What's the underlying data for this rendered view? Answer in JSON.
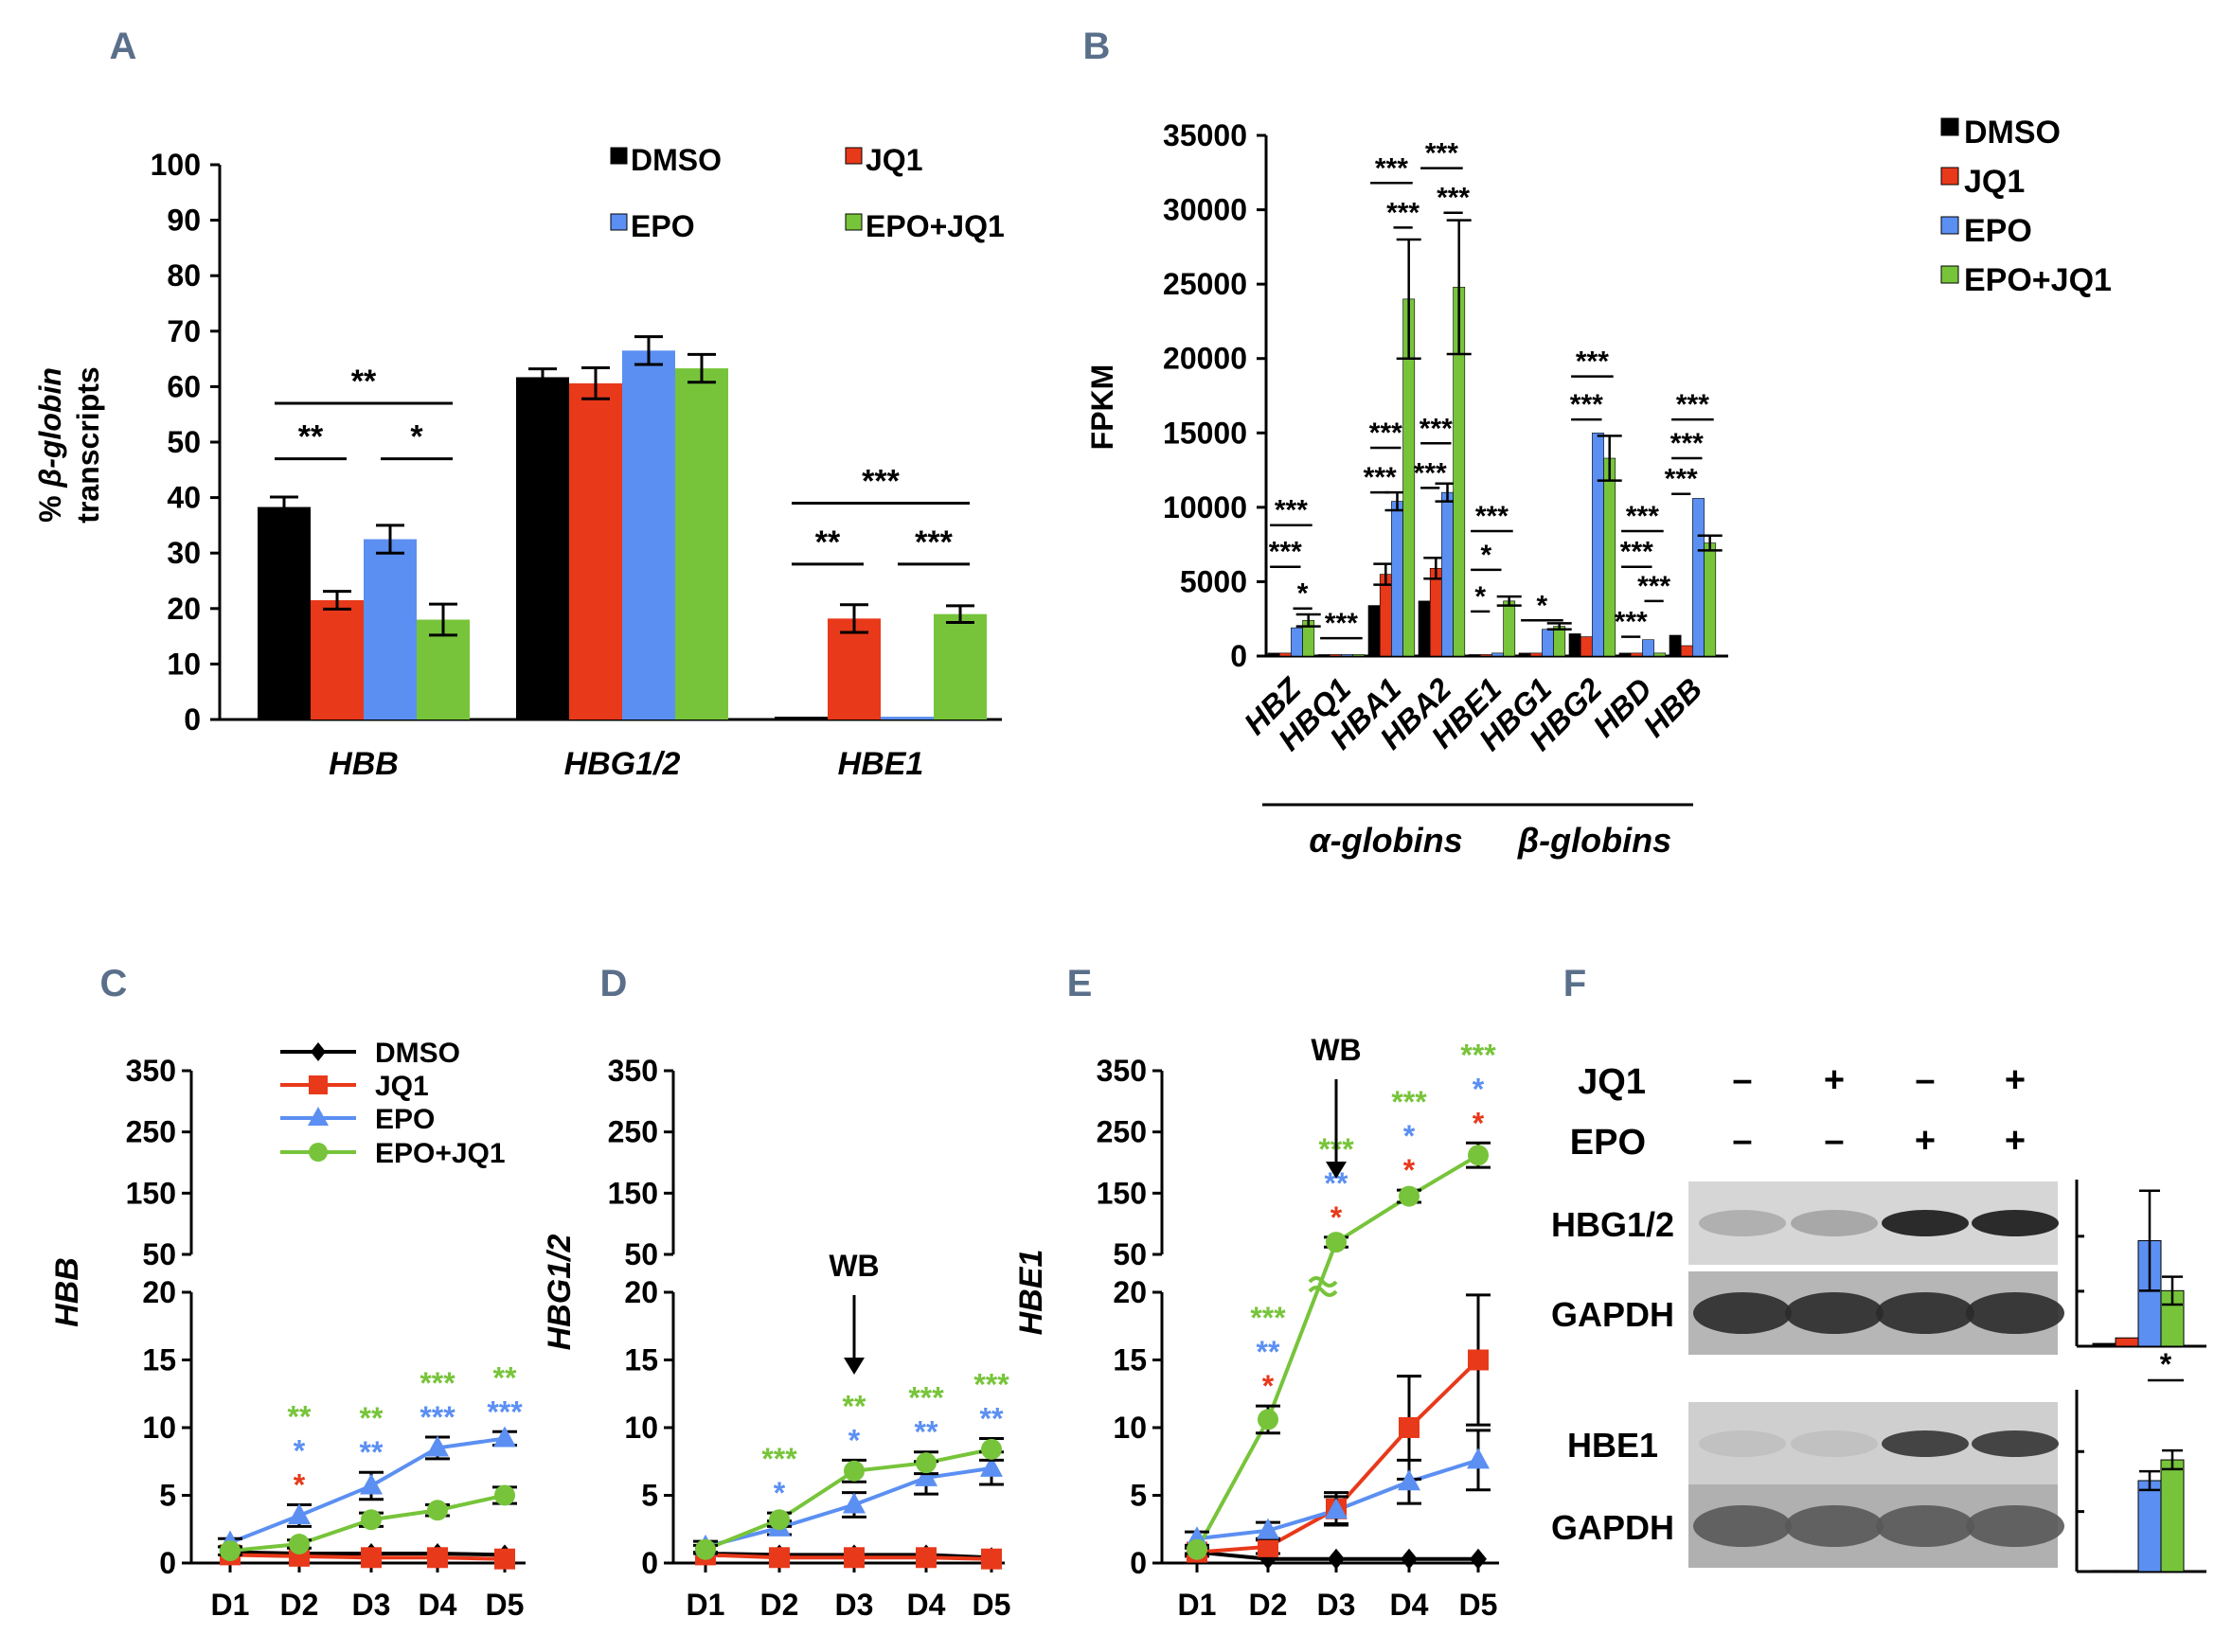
{
  "colors": {
    "DMSO": "#000000",
    "JQ1": "#e8391a",
    "EPO": "#5b8ff2",
    "EPO+JQ1": "#77c43a"
  },
  "chart_data": [
    {
      "panel": "A",
      "type": "bar",
      "ylabel_italic": "β-globin",
      "ylabel_pre": "% ",
      "ylabel_line2": "transcripts",
      "ylim": [
        0,
        100
      ],
      "yticks": [
        "0",
        "10",
        "20",
        "30",
        "40",
        "50",
        "60",
        "70",
        "80",
        "90",
        "100"
      ],
      "groups": [
        "HBB",
        "HBG1/2",
        "HBE1"
      ],
      "legend": [
        "DMSO",
        "JQ1",
        "EPO",
        "EPO+JQ1"
      ],
      "series": [
        {
          "name": "DMSO",
          "values": [
            38.3,
            61.7,
            0.5
          ],
          "errors": [
            1.8,
            1.5,
            0.2
          ]
        },
        {
          "name": "JQ1",
          "values": [
            21.5,
            60.6,
            18.2
          ],
          "errors": [
            1.6,
            2.8,
            2.5
          ]
        },
        {
          "name": "EPO",
          "values": [
            32.5,
            66.5,
            0.5
          ],
          "errors": [
            2.5,
            2.5,
            0.2
          ]
        },
        {
          "name": "EPO+JQ1",
          "values": [
            18.0,
            63.3,
            19.0
          ],
          "errors": [
            2.8,
            2.5,
            1.5
          ]
        }
      ],
      "significance": [
        {
          "label": "**",
          "group": "HBB",
          "from": "DMSO",
          "to": "EPO+JQ1",
          "level": 57
        },
        {
          "label": "**",
          "group": "HBB",
          "from": "DMSO",
          "to": "JQ1",
          "level": 47
        },
        {
          "label": "*",
          "group": "HBB",
          "from": "EPO",
          "to": "EPO+JQ1",
          "level": 47
        },
        {
          "label": "***",
          "group": "HBE1",
          "from": "DMSO",
          "to": "EPO+JQ1",
          "level": 39
        },
        {
          "label": "**",
          "group": "HBE1",
          "from": "DMSO",
          "to": "JQ1",
          "level": 28
        },
        {
          "label": "***",
          "group": "HBE1",
          "from": "EPO",
          "to": "EPO+JQ1",
          "level": 28
        }
      ]
    },
    {
      "panel": "B",
      "type": "bar",
      "ylabel": "FPKM",
      "ylim": [
        0,
        35000
      ],
      "yticks": [
        "0",
        "5000",
        "10000",
        "15000",
        "20000",
        "25000",
        "30000",
        "35000"
      ],
      "categories": [
        "HBZ",
        "HBQ1",
        "HBA1",
        "HBA2",
        "HBE1",
        "HBG1",
        "HBG2",
        "HBD",
        "HBB"
      ],
      "group_labels": [
        {
          "label": "α-globins",
          "from": 0,
          "to": 3
        },
        {
          "label": "β-globins",
          "from": 4,
          "to": 8
        }
      ],
      "legend": [
        "DMSO",
        "JQ1",
        "EPO",
        "EPO+JQ1"
      ],
      "series": [
        {
          "name": "DMSO",
          "values": [
            200,
            100,
            3400,
            3700,
            100,
            200,
            1500,
            200,
            1400
          ],
          "errors": [
            0,
            0,
            0,
            0,
            0,
            0,
            0,
            0,
            0
          ]
        },
        {
          "name": "JQ1",
          "values": [
            200,
            100,
            5500,
            5900,
            100,
            200,
            1300,
            200,
            700
          ],
          "errors": [
            0,
            0,
            700,
            700,
            0,
            0,
            0,
            0,
            0
          ]
        },
        {
          "name": "EPO",
          "values": [
            1900,
            100,
            10400,
            11000,
            200,
            1800,
            15000,
            1100,
            10600
          ],
          "errors": [
            0,
            0,
            600,
            600,
            0,
            0,
            0,
            0,
            0
          ]
        },
        {
          "name": "EPO+JQ1",
          "values": [
            2400,
            100,
            24000,
            24800,
            3700,
            2000,
            13300,
            200,
            7600
          ],
          "errors": [
            400,
            0,
            4000,
            4500,
            300,
            200,
            1500,
            0,
            500
          ]
        }
      ],
      "significance": [
        {
          "label": "***",
          "cat": 0,
          "from": 0,
          "to": 3,
          "level": 8800
        },
        {
          "label": "***",
          "cat": 0,
          "from": 0,
          "to": 2,
          "level": 6000
        },
        {
          "label": "*",
          "cat": 0,
          "from": 2,
          "to": 3,
          "level": 3200
        },
        {
          "label": "***",
          "cat": 1,
          "from": 0,
          "to": 3,
          "level": 1200
        },
        {
          "label": "***",
          "cat": 2,
          "from": 0,
          "to": 3,
          "level": 31800
        },
        {
          "label": "***",
          "cat": 2,
          "from": 2,
          "to": 3,
          "level": 28800
        },
        {
          "label": "***",
          "cat": 2,
          "from": 0,
          "to": 2,
          "level": 14000
        },
        {
          "label": "***",
          "cat": 2,
          "from": 0,
          "to": 1,
          "level": 11000
        },
        {
          "label": "***",
          "cat": 3,
          "from": 0,
          "to": 3,
          "level": 32800
        },
        {
          "label": "***",
          "cat": 3,
          "from": 2,
          "to": 3,
          "level": 29800
        },
        {
          "label": "***",
          "cat": 3,
          "from": 0,
          "to": 2,
          "level": 14300
        },
        {
          "label": "***",
          "cat": 3,
          "from": 0,
          "to": 1,
          "level": 11300
        },
        {
          "label": "***",
          "cat": 4,
          "from": 0,
          "to": 3,
          "level": 8400
        },
        {
          "label": "*",
          "cat": 4,
          "from": 0,
          "to": 2,
          "level": 5800
        },
        {
          "label": "*",
          "cat": 4,
          "from": 0,
          "to": 1,
          "level": 3000
        },
        {
          "label": "*",
          "cat": 5,
          "from": 0,
          "to": 3,
          "level": 2400
        },
        {
          "label": "***",
          "cat": 6,
          "from": 0,
          "to": 3,
          "level": 18800
        },
        {
          "label": "***",
          "cat": 6,
          "from": 0,
          "to": 2,
          "level": 15900
        },
        {
          "label": "***",
          "cat": 7,
          "from": 0,
          "to": 3,
          "level": 8400
        },
        {
          "label": "***",
          "cat": 7,
          "from": 0,
          "to": 2,
          "level": 6000
        },
        {
          "label": "***",
          "cat": 7,
          "from": 2,
          "to": 3,
          "level": 3700
        },
        {
          "label": "***",
          "cat": 7,
          "from": 0,
          "to": 1,
          "level": 1300
        },
        {
          "label": "***",
          "cat": 8,
          "from": 0,
          "to": 3,
          "level": 15900
        },
        {
          "label": "***",
          "cat": 8,
          "from": 0,
          "to": 2,
          "level": 13300
        },
        {
          "label": "***",
          "cat": 8,
          "from": 0,
          "to": 1,
          "level": 10900
        }
      ]
    },
    {
      "panel": "C",
      "type": "line",
      "ylabel": "HBB",
      "x": [
        "D1",
        "D2",
        "D3",
        "D4",
        "D5"
      ],
      "yticks_low": [
        "0",
        "5",
        "10",
        "15",
        "20"
      ],
      "yticks_high": [
        "50",
        "150",
        "250",
        "350"
      ],
      "axis_break": 20,
      "legend": [
        "DMSO",
        "JQ1",
        "EPO",
        "EPO+JQ1"
      ],
      "series": [
        {
          "name": "DMSO",
          "marker": "diamond",
          "values": [
            0.8,
            0.7,
            0.7,
            0.7,
            0.6
          ],
          "errors": [
            0.2,
            0.2,
            0.2,
            0.2,
            0.2
          ]
        },
        {
          "name": "JQ1",
          "marker": "square",
          "values": [
            0.6,
            0.5,
            0.4,
            0.4,
            0.3
          ],
          "errors": [
            0.2,
            0.2,
            0.2,
            0.2,
            0.2
          ]
        },
        {
          "name": "EPO",
          "marker": "triangle",
          "values": [
            1.5,
            3.5,
            5.7,
            8.5,
            9.2
          ],
          "errors": [
            0.3,
            0.8,
            1.0,
            0.8,
            0.5
          ]
        },
        {
          "name": "EPO+JQ1",
          "marker": "circle",
          "values": [
            0.9,
            1.4,
            3.2,
            3.9,
            5.0
          ],
          "errors": [
            0.3,
            0.3,
            0.5,
            0.4,
            0.6
          ]
        }
      ],
      "stars": [
        {
          "x": 1,
          "rows": [
            [
              "**",
              "EPO+JQ1"
            ],
            [
              "*",
              "EPO"
            ],
            [
              "*",
              "JQ1"
            ]
          ]
        },
        {
          "x": 2,
          "rows": [
            [
              "**",
              "EPO+JQ1"
            ],
            [
              "**",
              "EPO"
            ]
          ]
        },
        {
          "x": 3,
          "rows": [
            [
              "***",
              "EPO+JQ1"
            ],
            [
              "***",
              "EPO"
            ]
          ]
        },
        {
          "x": 4,
          "rows": [
            [
              "**",
              "EPO+JQ1"
            ],
            [
              "***",
              "EPO"
            ]
          ]
        }
      ]
    },
    {
      "panel": "D",
      "type": "line",
      "ylabel": "HBG1/2",
      "x": [
        "D1",
        "D2",
        "D3",
        "D4",
        "D5"
      ],
      "yticks_low": [
        "0",
        "5",
        "10",
        "15",
        "20"
      ],
      "yticks_high": [
        "50",
        "150",
        "250",
        "350"
      ],
      "axis_break": 20,
      "arrow_label": "WB",
      "arrow_x": 2,
      "series": [
        {
          "name": "DMSO",
          "marker": "diamond",
          "values": [
            0.7,
            0.6,
            0.6,
            0.6,
            0.4
          ],
          "errors": [
            0.2,
            0.2,
            0.2,
            0.2,
            0.2
          ]
        },
        {
          "name": "JQ1",
          "marker": "square",
          "values": [
            0.6,
            0.4,
            0.4,
            0.4,
            0.3
          ],
          "errors": [
            0.2,
            0.2,
            0.2,
            0.2,
            0.2
          ]
        },
        {
          "name": "EPO",
          "marker": "triangle",
          "values": [
            1.2,
            2.6,
            4.3,
            6.3,
            7.0
          ],
          "errors": [
            0.4,
            0.5,
            0.9,
            1.2,
            1.2
          ]
        },
        {
          "name": "EPO+JQ1",
          "marker": "circle",
          "values": [
            1.0,
            3.2,
            6.8,
            7.4,
            8.4
          ],
          "errors": [
            0.3,
            0.5,
            0.8,
            0.8,
            0.8
          ]
        }
      ],
      "stars": [
        {
          "x": 1,
          "rows": [
            [
              "***",
              "EPO+JQ1"
            ],
            [
              "*",
              "EPO"
            ]
          ]
        },
        {
          "x": 2,
          "rows": [
            [
              "**",
              "EPO+JQ1"
            ],
            [
              "*",
              "EPO"
            ]
          ]
        },
        {
          "x": 3,
          "rows": [
            [
              "***",
              "EPO+JQ1"
            ],
            [
              "**",
              "EPO"
            ]
          ]
        },
        {
          "x": 4,
          "rows": [
            [
              "***",
              "EPO+JQ1"
            ],
            [
              "**",
              "EPO"
            ]
          ]
        }
      ]
    },
    {
      "panel": "E",
      "type": "line",
      "ylabel": "HBE1",
      "x": [
        "D1",
        "D2",
        "D3",
        "D4",
        "D5"
      ],
      "yticks_low": [
        "0",
        "5",
        "10",
        "15",
        "20"
      ],
      "yticks_high": [
        "50",
        "150",
        "250",
        "350"
      ],
      "axis_break": 20,
      "arrow_label": "WB",
      "arrow_x": 2,
      "series": [
        {
          "name": "DMSO",
          "marker": "diamond",
          "values": [
            0.8,
            0.3,
            0.3,
            0.3,
            0.3
          ],
          "errors": [
            0.2,
            0.2,
            0.2,
            0.2,
            0.2
          ]
        },
        {
          "name": "JQ1",
          "marker": "square",
          "values": [
            0.8,
            1.2,
            4.0,
            10.0,
            15.0
          ],
          "errors": [
            0.3,
            0.5,
            1.2,
            3.8,
            4.8
          ]
        },
        {
          "name": "EPO",
          "marker": "triangle",
          "values": [
            1.8,
            2.4,
            3.9,
            6.0,
            7.6
          ],
          "errors": [
            0.5,
            0.6,
            1.0,
            1.6,
            2.2
          ]
        },
        {
          "name": "EPO+JQ1",
          "marker": "circle",
          "values": [
            1.0,
            10.6,
            70,
            145,
            212
          ],
          "errors": [
            0.3,
            1.0,
            8,
            10,
            20
          ]
        }
      ],
      "stars": [
        {
          "x": 1,
          "rows": [
            [
              "***",
              "EPO+JQ1"
            ],
            [
              "**",
              "EPO"
            ],
            [
              "*",
              "JQ1"
            ]
          ]
        },
        {
          "x": 2,
          "rows": [
            [
              "***",
              "EPO+JQ1"
            ],
            [
              "**",
              "EPO"
            ],
            [
              "*",
              "JQ1"
            ]
          ]
        },
        {
          "x": 3,
          "rows": [
            [
              "***",
              "EPO+JQ1"
            ],
            [
              "*",
              "EPO"
            ],
            [
              "*",
              "JQ1"
            ]
          ]
        },
        {
          "x": 4,
          "rows": [
            [
              "***",
              "EPO+JQ1"
            ],
            [
              "*",
              "EPO"
            ],
            [
              "*",
              "JQ1"
            ]
          ]
        }
      ]
    },
    {
      "panel": "F",
      "type": "blot",
      "condition_rows": [
        {
          "label": "JQ1",
          "signs": [
            "–",
            "+",
            "–",
            "+"
          ]
        },
        {
          "label": "EPO",
          "signs": [
            "–",
            "–",
            "+",
            "+"
          ]
        }
      ],
      "blots": [
        "HBG1/2",
        "GAPDH",
        "HBE1",
        "GAPDH"
      ],
      "quant": [
        {
          "name": "HBG1/2",
          "values": [
            0.05,
            0.15,
            1.9,
            1.0
          ],
          "errors": [
            0,
            0,
            0.9,
            0.25
          ],
          "ymax": 3.0
        },
        {
          "name": "HBE1",
          "values": [
            0.02,
            0.02,
            1.75,
            2.15
          ],
          "errors": [
            0,
            0,
            0.18,
            0.18
          ],
          "ymax": 3.5
        }
      ],
      "quant_star": "*"
    }
  ],
  "panel_labels": [
    "A",
    "B",
    "C",
    "D",
    "E",
    "F"
  ]
}
